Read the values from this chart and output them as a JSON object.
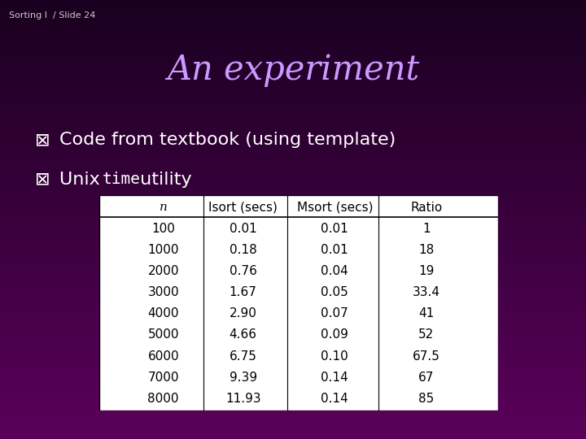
{
  "slide_label": "Sorting I  / Slide 24",
  "title": "An experiment",
  "bullet1_plain": "Code from textbook (using template)",
  "bullet2_plain": "Unix ",
  "bullet2_mono": "time",
  "bullet2_rest": " utility",
  "table_headers": [
    "n",
    "Isort (secs)",
    "Msort (secs)",
    "Ratio"
  ],
  "table_rows": [
    [
      "100",
      "0.01",
      "0.01",
      "1"
    ],
    [
      "1000",
      "0.18",
      "0.01",
      "18"
    ],
    [
      "2000",
      "0.76",
      "0.04",
      "19"
    ],
    [
      "3000",
      "1.67",
      "0.05",
      "33.4"
    ],
    [
      "4000",
      "2.90",
      "0.07",
      "41"
    ],
    [
      "5000",
      "4.66",
      "0.09",
      "52"
    ],
    [
      "6000",
      "6.75",
      "0.10",
      "67.5"
    ],
    [
      "7000",
      "9.39",
      "0.14",
      "67"
    ],
    [
      "8000",
      "11.93",
      "0.14",
      "85"
    ]
  ],
  "bg_color_top": "#1a0020",
  "bg_color_bottom": "#5a005a",
  "title_color": "#cc99ff",
  "slide_label_color": "#cccccc",
  "bullet_color": "#ffffff",
  "table_bg": "#ffffff",
  "table_text_color": "#000000",
  "table_header_bg": "#ffffff"
}
